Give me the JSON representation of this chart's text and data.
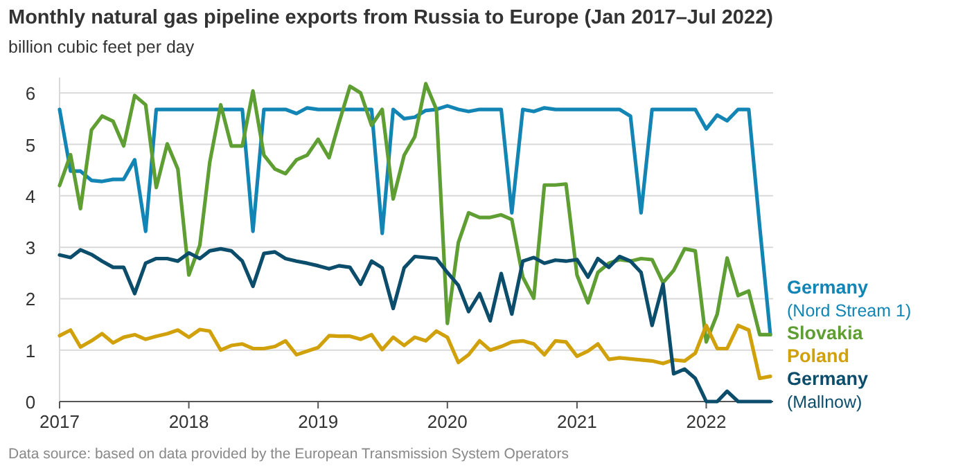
{
  "chart_data": {
    "type": "line",
    "title": "Monthly natural gas pipeline exports from Russia to Europe (Jan 2017–Jul 2022)",
    "subtitle": "billion cubic feet per day",
    "annotations": [
      "Data source: based on data provided by the European Transmission System Operators"
    ],
    "x": [
      "2017-01",
      "2017-02",
      "2017-03",
      "2017-04",
      "2017-05",
      "2017-06",
      "2017-07",
      "2017-08",
      "2017-09",
      "2017-10",
      "2017-11",
      "2017-12",
      "2018-01",
      "2018-02",
      "2018-03",
      "2018-04",
      "2018-05",
      "2018-06",
      "2018-07",
      "2018-08",
      "2018-09",
      "2018-10",
      "2018-11",
      "2018-12",
      "2019-01",
      "2019-02",
      "2019-03",
      "2019-04",
      "2019-05",
      "2019-06",
      "2019-07",
      "2019-08",
      "2019-09",
      "2019-10",
      "2019-11",
      "2019-12",
      "2020-01",
      "2020-02",
      "2020-03",
      "2020-04",
      "2020-05",
      "2020-06",
      "2020-07",
      "2020-08",
      "2020-09",
      "2020-10",
      "2020-11",
      "2020-12",
      "2021-01",
      "2021-02",
      "2021-03",
      "2021-04",
      "2021-05",
      "2021-06",
      "2021-07",
      "2021-08",
      "2021-09",
      "2021-10",
      "2021-11",
      "2021-12",
      "2022-01",
      "2022-02",
      "2022-03",
      "2022-04",
      "2022-05",
      "2022-06",
      "2022-07"
    ],
    "series": [
      {
        "name": "Germany (Nord Stream 1)",
        "color": "#1285b5",
        "values": [
          5.68,
          4.48,
          4.48,
          4.3,
          4.28,
          4.32,
          4.32,
          4.7,
          3.31,
          5.68,
          5.68,
          5.68,
          5.68,
          5.68,
          5.68,
          5.68,
          5.68,
          5.68,
          3.31,
          5.68,
          5.68,
          5.68,
          5.6,
          5.71,
          5.68,
          5.68,
          5.68,
          5.68,
          5.68,
          5.68,
          3.27,
          5.68,
          5.5,
          5.53,
          5.66,
          5.68,
          5.75,
          5.68,
          5.64,
          5.68,
          5.68,
          5.68,
          3.67,
          5.68,
          5.64,
          5.71,
          5.68,
          5.68,
          5.68,
          5.68,
          5.68,
          5.68,
          5.68,
          5.55,
          3.67,
          5.68,
          5.68,
          5.68,
          5.68,
          5.68,
          5.3,
          5.57,
          5.46,
          5.68,
          5.68,
          3.4,
          1.3
        ]
      },
      {
        "name": "Slovakia",
        "color": "#5e9e32",
        "values": [
          4.2,
          4.8,
          3.75,
          5.28,
          5.55,
          5.45,
          4.97,
          5.95,
          5.77,
          4.16,
          5.01,
          4.52,
          2.46,
          3.04,
          4.65,
          5.77,
          4.97,
          4.97,
          6.04,
          4.79,
          4.52,
          4.43,
          4.7,
          4.79,
          5.1,
          4.74,
          5.42,
          6.13,
          6.0,
          5.37,
          5.68,
          3.94,
          4.79,
          5.15,
          6.18,
          5.68,
          1.52,
          3.09,
          3.67,
          3.58,
          3.58,
          3.63,
          3.54,
          2.42,
          2.01,
          4.21,
          4.21,
          4.23,
          2.46,
          1.92,
          2.51,
          2.69,
          2.76,
          2.73,
          2.78,
          2.76,
          2.31,
          2.55,
          2.97,
          2.93,
          1.16,
          1.7,
          2.79,
          2.06,
          2.15,
          1.3,
          1.3
        ]
      },
      {
        "name": "Poland",
        "color": "#d0a10a",
        "values": [
          1.28,
          1.39,
          1.06,
          1.18,
          1.32,
          1.14,
          1.25,
          1.3,
          1.21,
          1.27,
          1.32,
          1.39,
          1.25,
          1.4,
          1.37,
          1.0,
          1.09,
          1.12,
          1.03,
          1.03,
          1.07,
          1.18,
          0.91,
          0.98,
          1.05,
          1.28,
          1.27,
          1.27,
          1.21,
          1.3,
          1.01,
          1.25,
          1.09,
          1.25,
          1.18,
          1.37,
          1.25,
          0.76,
          0.91,
          1.18,
          1.0,
          1.07,
          1.16,
          1.18,
          1.12,
          0.91,
          1.18,
          1.16,
          0.88,
          0.98,
          1.12,
          0.82,
          0.85,
          0.83,
          0.81,
          0.79,
          0.74,
          0.81,
          0.79,
          0.94,
          1.48,
          1.03,
          1.03,
          1.48,
          1.39,
          0.45,
          0.49
        ]
      },
      {
        "name": "Germany (Mallnow)",
        "color": "#0b4d6b",
        "values": [
          2.85,
          2.8,
          2.95,
          2.86,
          2.73,
          2.61,
          2.61,
          2.1,
          2.69,
          2.78,
          2.78,
          2.73,
          2.89,
          2.78,
          2.93,
          2.97,
          2.93,
          2.73,
          2.24,
          2.88,
          2.91,
          2.78,
          2.73,
          2.69,
          2.64,
          2.58,
          2.64,
          2.61,
          2.28,
          2.73,
          2.6,
          1.81,
          2.6,
          2.82,
          2.8,
          2.78,
          2.51,
          2.26,
          1.75,
          2.1,
          1.57,
          2.49,
          1.7,
          2.73,
          2.8,
          2.69,
          2.75,
          2.73,
          2.76,
          2.42,
          2.78,
          2.61,
          2.82,
          2.73,
          2.51,
          1.48,
          2.28,
          0.54,
          0.63,
          0.45,
          0,
          0,
          0.2,
          0,
          0,
          0,
          0
        ]
      }
    ],
    "xlim": [
      "2017-01",
      "2022-07"
    ],
    "xticks": [
      {
        "value": "2017-01",
        "label": "2017"
      },
      {
        "value": "2018-01",
        "label": "2018"
      },
      {
        "value": "2019-01",
        "label": "2019"
      },
      {
        "value": "2020-01",
        "label": "2020"
      },
      {
        "value": "2021-01",
        "label": "2021"
      },
      {
        "value": "2022-01",
        "label": "2022"
      }
    ],
    "ylim": [
      0,
      6.3
    ],
    "yticks": [
      0,
      1,
      2,
      3,
      4,
      5,
      6
    ],
    "grid": "y",
    "legend": "right"
  }
}
